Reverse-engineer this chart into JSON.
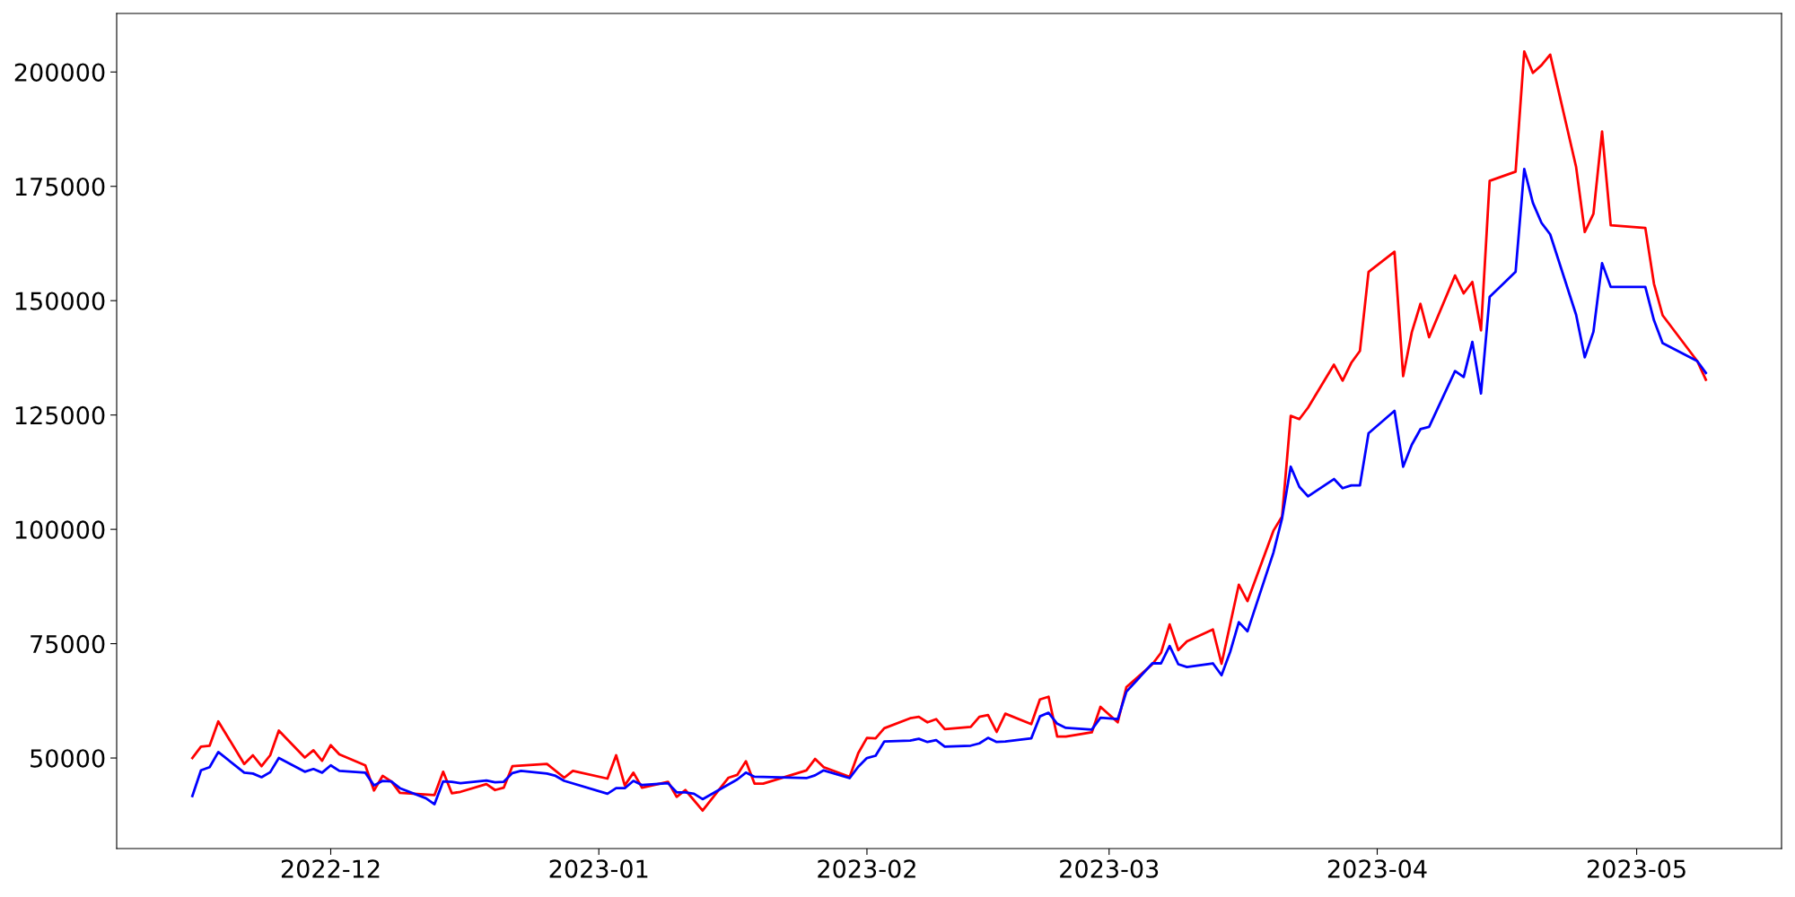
{
  "chart_data": {
    "type": "line",
    "xlim": [
      "2022-11-06T06:00",
      "2023-05-17T18:00"
    ],
    "ylim": [
      30200,
      212800
    ],
    "xticks": [
      {
        "value": "2022-12-01",
        "label": "2022-12"
      },
      {
        "value": "2023-01-01",
        "label": "2023-01"
      },
      {
        "value": "2023-02-01",
        "label": "2023-02"
      },
      {
        "value": "2023-03-01",
        "label": "2023-03"
      },
      {
        "value": "2023-04-01",
        "label": "2023-04"
      },
      {
        "value": "2023-05-01",
        "label": "2023-05"
      }
    ],
    "yticks": [
      50000,
      75000,
      100000,
      125000,
      150000,
      175000,
      200000
    ],
    "grid": false,
    "marker": "none",
    "line_style": "solid",
    "series": [
      {
        "color": "#ff0000",
        "x": [
          "2022-11-15",
          "2022-11-16",
          "2022-11-17",
          "2022-11-18",
          "2022-11-21",
          "2022-11-22",
          "2022-11-23",
          "2022-11-24",
          "2022-11-25",
          "2022-11-28",
          "2022-11-29",
          "2022-11-30",
          "2022-12-01",
          "2022-12-02",
          "2022-12-05",
          "2022-12-06",
          "2022-12-07",
          "2022-12-08",
          "2022-12-09",
          "2022-12-13",
          "2022-12-14",
          "2022-12-15",
          "2022-12-16",
          "2022-12-19",
          "2022-12-20",
          "2022-12-21",
          "2022-12-22",
          "2022-12-26",
          "2022-12-28",
          "2022-12-29",
          "2023-01-02",
          "2023-01-03",
          "2023-01-04",
          "2023-01-05",
          "2023-01-06",
          "2023-01-09",
          "2023-01-10",
          "2023-01-11",
          "2023-01-13",
          "2023-01-16",
          "2023-01-17",
          "2023-01-18",
          "2023-01-19",
          "2023-01-20",
          "2023-01-25",
          "2023-01-26",
          "2023-01-27",
          "2023-01-30",
          "2023-01-31",
          "2023-02-01",
          "2023-02-02",
          "2023-02-03",
          "2023-02-06",
          "2023-02-07",
          "2023-02-08",
          "2023-02-09",
          "2023-02-10",
          "2023-02-13",
          "2023-02-14",
          "2023-02-15",
          "2023-02-16",
          "2023-02-17",
          "2023-02-20",
          "2023-02-21",
          "2023-02-22",
          "2023-02-23",
          "2023-02-24",
          "2023-02-27",
          "2023-02-28",
          "2023-03-02",
          "2023-03-03",
          "2023-03-06",
          "2023-03-07",
          "2023-03-08",
          "2023-03-09",
          "2023-03-10",
          "2023-03-13",
          "2023-03-14",
          "2023-03-16",
          "2023-03-17",
          "2023-03-20",
          "2023-03-21",
          "2023-03-22",
          "2023-03-23",
          "2023-03-24",
          "2023-03-27",
          "2023-03-28",
          "2023-03-29",
          "2023-03-30",
          "2023-03-31",
          "2023-04-03",
          "2023-04-04",
          "2023-04-05",
          "2023-04-06",
          "2023-04-07",
          "2023-04-10",
          "2023-04-11",
          "2023-04-12",
          "2023-04-13",
          "2023-04-14",
          "2023-04-17",
          "2023-04-18",
          "2023-04-19",
          "2023-04-20",
          "2023-04-21",
          "2023-04-24",
          "2023-04-25",
          "2023-04-26",
          "2023-04-27",
          "2023-04-28",
          "2023-05-02",
          "2023-05-03",
          "2023-05-04",
          "2023-05-08",
          "2023-05-09"
        ],
        "values": [
          50000,
          52500,
          52700,
          58000,
          48700,
          50600,
          48200,
          50600,
          56000,
          50100,
          51700,
          49400,
          52800,
          50800,
          48400,
          42900,
          46100,
          44900,
          42400,
          41900,
          47000,
          42300,
          42600,
          44300,
          43000,
          43500,
          48200,
          48700,
          45700,
          47200,
          45500,
          50600,
          44000,
          46800,
          43500,
          44800,
          41500,
          43000,
          38500,
          45700,
          46300,
          49300,
          44400,
          44400,
          47300,
          49800,
          48000,
          45900,
          51100,
          54400,
          54300,
          56500,
          58700,
          59000,
          57800,
          58500,
          56300,
          56800,
          59000,
          59400,
          55700,
          59700,
          57400,
          62800,
          63400,
          54700,
          54700,
          55600,
          61200,
          57800,
          65500,
          70500,
          73000,
          79200,
          73600,
          75500,
          78100,
          70600,
          87900,
          84300,
          99700,
          102800,
          124800,
          124100,
          126600,
          136000,
          132500,
          136400,
          139000,
          156300,
          160700,
          133500,
          143100,
          149300,
          142000,
          155500,
          151600,
          154100,
          143500,
          176200,
          178200,
          204500,
          199800,
          201500,
          203800,
          179200,
          165000,
          169000,
          187000,
          166500,
          165900,
          153700,
          146800,
          136800,
          132700
        ]
      },
      {
        "color": "#0000ff",
        "x": [
          "2022-11-15",
          "2022-11-16",
          "2022-11-17",
          "2022-11-18",
          "2022-11-21",
          "2022-11-22",
          "2022-11-23",
          "2022-11-24",
          "2022-11-25",
          "2022-11-28",
          "2022-11-29",
          "2022-11-30",
          "2022-12-01",
          "2022-12-02",
          "2022-12-05",
          "2022-12-06",
          "2022-12-07",
          "2022-12-08",
          "2022-12-09",
          "2022-12-12",
          "2022-12-13",
          "2022-12-14",
          "2022-12-15",
          "2022-12-16",
          "2022-12-19",
          "2022-12-20",
          "2022-12-21",
          "2022-12-22",
          "2022-12-23",
          "2022-12-26",
          "2022-12-27",
          "2022-12-28",
          "2023-01-02",
          "2023-01-03",
          "2023-01-04",
          "2023-01-05",
          "2023-01-06",
          "2023-01-09",
          "2023-01-10",
          "2023-01-11",
          "2023-01-12",
          "2023-01-13",
          "2023-01-17",
          "2023-01-18",
          "2023-01-19",
          "2023-01-25",
          "2023-01-26",
          "2023-01-27",
          "2023-01-30",
          "2023-01-31",
          "2023-02-01",
          "2023-02-02",
          "2023-02-03",
          "2023-02-06",
          "2023-02-07",
          "2023-02-08",
          "2023-02-09",
          "2023-02-10",
          "2023-02-13",
          "2023-02-14",
          "2023-02-15",
          "2023-02-16",
          "2023-02-17",
          "2023-02-20",
          "2023-02-21",
          "2023-02-22",
          "2023-02-23",
          "2023-02-24",
          "2023-02-27",
          "2023-02-28",
          "2023-03-02",
          "2023-03-03",
          "2023-03-06",
          "2023-03-07",
          "2023-03-08",
          "2023-03-09",
          "2023-03-10",
          "2023-03-13",
          "2023-03-14",
          "2023-03-15",
          "2023-03-16",
          "2023-03-17",
          "2023-03-20",
          "2023-03-21",
          "2023-03-22",
          "2023-03-23",
          "2023-03-24",
          "2023-03-27",
          "2023-03-28",
          "2023-03-29",
          "2023-03-30",
          "2023-03-31",
          "2023-04-03",
          "2023-04-04",
          "2023-04-05",
          "2023-04-06",
          "2023-04-07",
          "2023-04-10",
          "2023-04-11",
          "2023-04-12",
          "2023-04-13",
          "2023-04-14",
          "2023-04-17",
          "2023-04-18",
          "2023-04-19",
          "2023-04-20",
          "2023-04-21",
          "2023-04-24",
          "2023-04-25",
          "2023-04-26",
          "2023-04-27",
          "2023-04-28",
          "2023-05-02",
          "2023-05-03",
          "2023-05-04",
          "2023-05-08",
          "2023-05-09"
        ],
        "values": [
          41700,
          47300,
          48000,
          51300,
          46800,
          46600,
          45800,
          46900,
          50000,
          47000,
          47600,
          46800,
          48400,
          47200,
          46800,
          44000,
          45000,
          44900,
          43400,
          41200,
          39900,
          44900,
          44800,
          44500,
          45100,
          44700,
          44800,
          46700,
          47200,
          46600,
          46100,
          45000,
          42200,
          43400,
          43400,
          45000,
          44100,
          44500,
          42500,
          42500,
          42200,
          41000,
          45300,
          46800,
          45900,
          45600,
          46200,
          47300,
          45600,
          48100,
          50000,
          50500,
          53600,
          53800,
          54200,
          53500,
          53900,
          52500,
          52700,
          53200,
          54400,
          53500,
          53600,
          54300,
          59100,
          59900,
          57500,
          56600,
          56200,
          58800,
          58500,
          64500,
          70700,
          70700,
          74500,
          70500,
          69900,
          70700,
          68100,
          73200,
          79700,
          77700,
          94900,
          102400,
          113700,
          109300,
          107200,
          111000,
          109000,
          109600,
          109600,
          121000,
          125900,
          113700,
          118500,
          121900,
          122400,
          134600,
          133300,
          141000,
          129700,
          150800,
          156300,
          178800,
          171400,
          167000,
          164500,
          146900,
          137600,
          143200,
          158200,
          153000,
          153000,
          145700,
          140700,
          136800,
          134200
        ]
      }
    ]
  }
}
